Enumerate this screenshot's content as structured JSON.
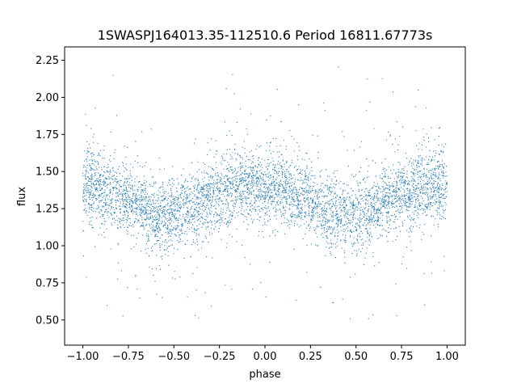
{
  "chart_data": {
    "type": "scatter",
    "title": "1SWASPJ164013.35-112510.6 Period 16811.67773s",
    "xlabel": "phase",
    "ylabel": "flux",
    "xlim": [
      -1.1,
      1.1
    ],
    "ylim": [
      0.33,
      2.34
    ],
    "xticks": [
      -1.0,
      -0.75,
      -0.5,
      -0.25,
      0.0,
      0.25,
      0.5,
      0.75,
      1.0
    ],
    "xtick_labels": [
      "−1.00",
      "−0.75",
      "−0.50",
      "−0.25",
      "0.00",
      "0.25",
      "0.50",
      "0.75",
      "1.00"
    ],
    "yticks": [
      0.5,
      0.75,
      1.0,
      1.25,
      1.5,
      1.75,
      2.0,
      2.25
    ],
    "ytick_labels": [
      "0.50",
      "0.75",
      "1.00",
      "1.25",
      "1.50",
      "1.75",
      "2.00",
      "2.25"
    ],
    "grid": false,
    "legend": "none",
    "marker_color": "#1f77b4",
    "series": [
      {
        "x": [
          -1.0,
          -0.95,
          -0.9,
          -0.85,
          -0.8,
          -0.75,
          -0.7,
          -0.65,
          -0.6,
          -0.55,
          -0.5,
          -0.45,
          -0.4,
          -0.35,
          -0.3,
          -0.25,
          -0.2,
          -0.15,
          -0.1,
          -0.05,
          0.0,
          0.05,
          0.1,
          0.15,
          0.2,
          0.25,
          0.3,
          0.35,
          0.4,
          0.45,
          0.5,
          0.55,
          0.6,
          0.65,
          0.7,
          0.75,
          0.8,
          0.85,
          0.9,
          0.95,
          1.0
        ],
        "y": [
          1.4,
          1.4,
          1.38,
          1.36,
          1.34,
          1.31,
          1.27,
          1.24,
          1.21,
          1.2,
          1.21,
          1.23,
          1.26,
          1.29,
          1.32,
          1.35,
          1.37,
          1.39,
          1.4,
          1.4,
          1.4,
          1.39,
          1.38,
          1.36,
          1.34,
          1.31,
          1.27,
          1.24,
          1.21,
          1.2,
          1.21,
          1.23,
          1.26,
          1.29,
          1.32,
          1.35,
          1.37,
          1.39,
          1.4,
          1.4,
          1.4
        ],
        "spread": 0.12
      }
    ]
  }
}
